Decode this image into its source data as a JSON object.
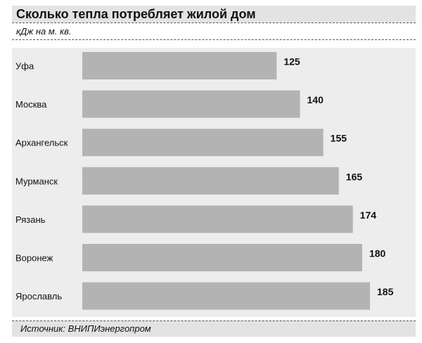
{
  "title": "Сколько тепла потребляет жилой дом",
  "subtitle": "кДж на м. кв.",
  "source": "Источник: ВНИПИэнергопром",
  "colors": {
    "bar": "#b3b3b3",
    "background": "#ededed",
    "header": "#e3e3e3"
  },
  "chart_data": {
    "type": "bar",
    "orientation": "horizontal",
    "categories": [
      "Уфа",
      "Москва",
      "Архангельск",
      "Мурманск",
      "Рязань",
      "Воронеж",
      "Ярославль"
    ],
    "values": [
      125,
      140,
      155,
      165,
      174,
      180,
      185
    ],
    "title": "Сколько тепла потребляет жилой дом",
    "unit": "кДж на м. кв.",
    "xlabel": "",
    "ylabel": "",
    "xlim": [
      0,
      185
    ],
    "grid": false,
    "legend": "none"
  }
}
